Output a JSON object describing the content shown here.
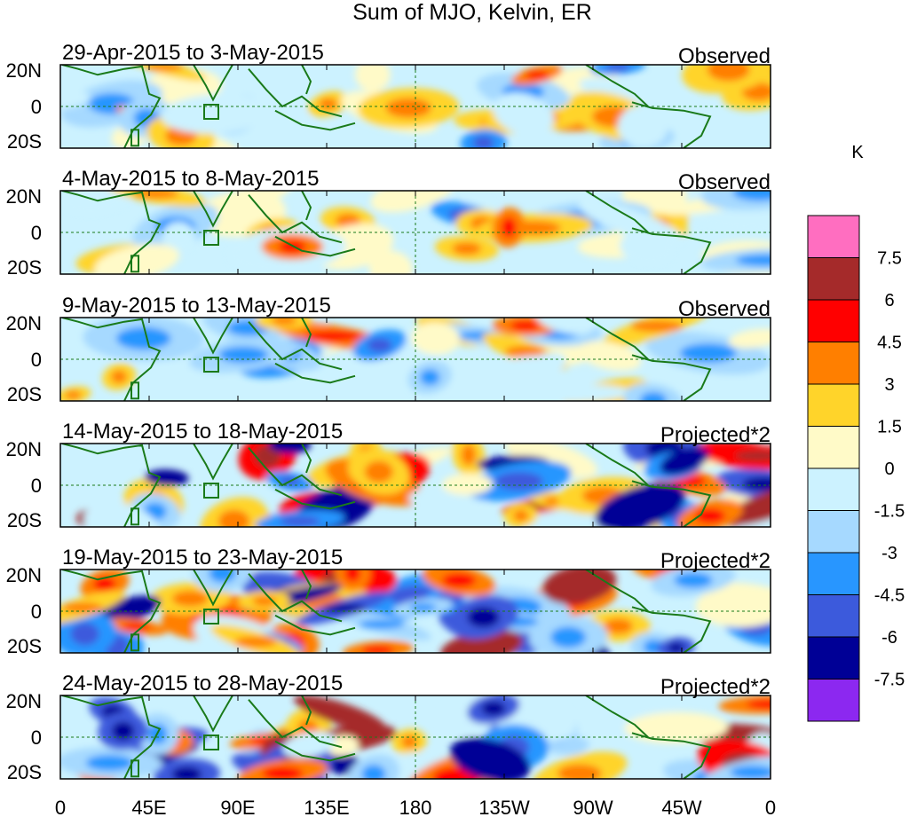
{
  "title": "Sum of MJO, Kelvin, ER",
  "colorbar": {
    "unit": "K",
    "levels": [
      "7.5",
      "6",
      "4.5",
      "3",
      "1.5",
      "0",
      "-1.5",
      "-3",
      "-4.5",
      "-6",
      "-7.5"
    ],
    "colors": [
      "#ff6ec0",
      "#a52a2a",
      "#ff0000",
      "#ff7f00",
      "#ffd42a",
      "#fffac8",
      "#ccf2ff",
      "#a6d9ff",
      "#2896ff",
      "#3c5adc",
      "#000096",
      "#8c28f0"
    ]
  },
  "panels": [
    {
      "date_range": "29-Apr-2015 to 3-May-2015",
      "kind": "Observed"
    },
    {
      "date_range": "4-May-2015 to 8-May-2015",
      "kind": "Observed"
    },
    {
      "date_range": "9-May-2015 to 13-May-2015",
      "kind": "Observed"
    },
    {
      "date_range": "14-May-2015 to 18-May-2015",
      "kind": "Projected*2"
    },
    {
      "date_range": "19-May-2015 to 23-May-2015",
      "kind": "Projected*2"
    },
    {
      "date_range": "24-May-2015 to 28-May-2015",
      "kind": "Projected*2"
    }
  ],
  "axes": {
    "lat_labels": [
      "20N",
      "0",
      "20S"
    ],
    "lon_labels": [
      "0",
      "45E",
      "90E",
      "135E",
      "180",
      "135W",
      "90W",
      "45W",
      "0"
    ]
  }
}
